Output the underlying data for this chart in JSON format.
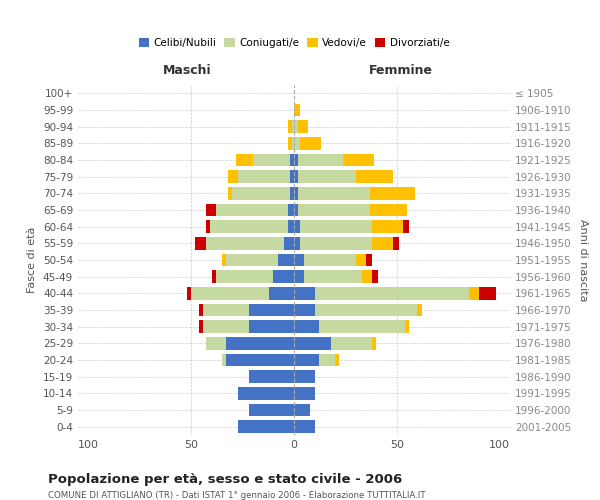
{
  "age_groups": [
    "0-4",
    "5-9",
    "10-14",
    "15-19",
    "20-24",
    "25-29",
    "30-34",
    "35-39",
    "40-44",
    "45-49",
    "50-54",
    "55-59",
    "60-64",
    "65-69",
    "70-74",
    "75-79",
    "80-84",
    "85-89",
    "90-94",
    "95-99",
    "100+"
  ],
  "birth_years": [
    "2001-2005",
    "1996-2000",
    "1991-1995",
    "1986-1990",
    "1981-1985",
    "1976-1980",
    "1971-1975",
    "1966-1970",
    "1961-1965",
    "1956-1960",
    "1951-1955",
    "1946-1950",
    "1941-1945",
    "1936-1940",
    "1931-1935",
    "1926-1930",
    "1921-1925",
    "1916-1920",
    "1911-1915",
    "1906-1910",
    "≤ 1905"
  ],
  "colors": {
    "celibi": "#4472c4",
    "coniugati": "#c5d9a0",
    "vedovi": "#ffc000",
    "divorziati": "#cc0000"
  },
  "maschi": {
    "celibi": [
      27,
      22,
      27,
      22,
      33,
      33,
      22,
      22,
      12,
      10,
      8,
      5,
      3,
      3,
      2,
      2,
      2,
      0,
      0,
      0,
      0
    ],
    "coniugati": [
      0,
      0,
      0,
      0,
      2,
      10,
      22,
      22,
      38,
      28,
      25,
      38,
      38,
      35,
      28,
      25,
      18,
      1,
      1,
      0,
      0
    ],
    "vedovi": [
      0,
      0,
      0,
      0,
      0,
      0,
      0,
      0,
      0,
      0,
      2,
      0,
      0,
      0,
      2,
      5,
      8,
      2,
      2,
      0,
      0
    ],
    "divorziati": [
      0,
      0,
      0,
      0,
      0,
      0,
      2,
      2,
      2,
      2,
      0,
      5,
      2,
      5,
      0,
      0,
      0,
      0,
      0,
      0,
      0
    ]
  },
  "femmine": {
    "nubili": [
      10,
      8,
      10,
      10,
      12,
      18,
      12,
      10,
      10,
      5,
      5,
      3,
      3,
      2,
      2,
      2,
      2,
      0,
      0,
      0,
      0
    ],
    "coniugate": [
      0,
      0,
      0,
      0,
      8,
      20,
      42,
      50,
      75,
      28,
      25,
      35,
      35,
      35,
      35,
      28,
      22,
      3,
      2,
      0,
      0
    ],
    "vedove": [
      0,
      0,
      0,
      0,
      2,
      2,
      2,
      2,
      5,
      5,
      5,
      10,
      15,
      18,
      22,
      18,
      15,
      10,
      5,
      3,
      0
    ],
    "divorziate": [
      0,
      0,
      0,
      0,
      0,
      0,
      0,
      0,
      8,
      3,
      3,
      3,
      3,
      0,
      0,
      0,
      0,
      0,
      0,
      0,
      0
    ]
  },
  "xlim": 105,
  "title": "Popolazione per età, sesso e stato civile - 2006",
  "subtitle": "COMUNE DI ATTIGLIANO (TR) - Dati ISTAT 1° gennaio 2006 - Elaborazione TUTTITALIA.IT",
  "xlabel_left": "Maschi",
  "xlabel_right": "Femmine",
  "ylabel_left": "Fasce di età",
  "ylabel_right": "Anni di nascita",
  "legend_labels": [
    "Celibi/Nubili",
    "Coniugati/e",
    "Vedovi/e",
    "Divorziati/e"
  ],
  "bg_color": "#ffffff",
  "grid_color": "#cccccc"
}
